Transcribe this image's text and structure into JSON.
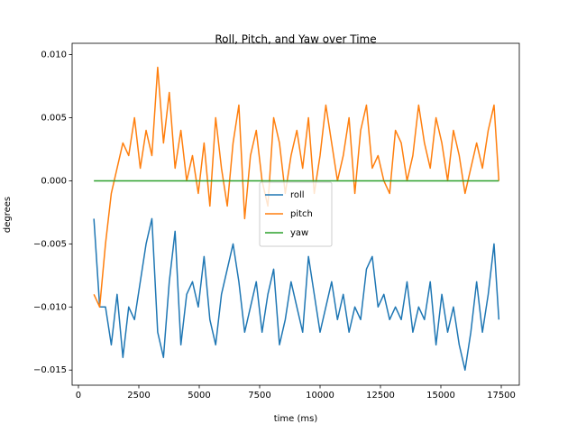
{
  "chart_data": {
    "type": "line",
    "title": "Roll, Pitch, and Yaw over Time",
    "xlabel": "time (ms)",
    "ylabel": "degrees",
    "x": [
      640,
      880,
      1120,
      1360,
      1600,
      1840,
      2080,
      2320,
      2560,
      2800,
      3040,
      3280,
      3520,
      3760,
      4000,
      4240,
      4480,
      4720,
      4960,
      5200,
      5440,
      5680,
      5920,
      6160,
      6400,
      6640,
      6880,
      7120,
      7360,
      7600,
      7840,
      8080,
      8320,
      8560,
      8800,
      9040,
      9280,
      9520,
      9760,
      10000,
      10240,
      10480,
      10720,
      10960,
      11200,
      11440,
      11680,
      11920,
      12160,
      12400,
      12640,
      12880,
      13120,
      13360,
      13600,
      13840,
      14080,
      14320,
      14560,
      14800,
      15040,
      15280,
      15520,
      15760,
      16000,
      16240,
      16480,
      16720,
      16960,
      17200,
      17400
    ],
    "series": [
      {
        "name": "roll",
        "color": "#1f77b4",
        "values": [
          -0.003,
          -0.01,
          -0.01,
          -0.013,
          -0.009,
          -0.014,
          -0.01,
          -0.011,
          -0.008,
          -0.005,
          -0.003,
          -0.012,
          -0.014,
          -0.008,
          -0.004,
          -0.013,
          -0.009,
          -0.008,
          -0.01,
          -0.006,
          -0.011,
          -0.013,
          -0.009,
          -0.007,
          -0.005,
          -0.008,
          -0.012,
          -0.01,
          -0.008,
          -0.012,
          -0.009,
          -0.007,
          -0.013,
          -0.011,
          -0.008,
          -0.01,
          -0.012,
          -0.006,
          -0.009,
          -0.012,
          -0.01,
          -0.008,
          -0.011,
          -0.009,
          -0.012,
          -0.01,
          -0.011,
          -0.007,
          -0.006,
          -0.01,
          -0.009,
          -0.011,
          -0.01,
          -0.011,
          -0.008,
          -0.012,
          -0.01,
          -0.011,
          -0.008,
          -0.013,
          -0.009,
          -0.012,
          -0.01,
          -0.013,
          -0.015,
          -0.012,
          -0.008,
          -0.012,
          -0.009,
          -0.005,
          -0.011
        ]
      },
      {
        "name": "pitch",
        "color": "#ff7f0e",
        "values": [
          -0.009,
          -0.01,
          -0.005,
          -0.001,
          0.001,
          0.003,
          0.002,
          0.005,
          0.001,
          0.004,
          0.002,
          0.009,
          0.003,
          0.007,
          0.001,
          0.004,
          0.0,
          0.002,
          -0.001,
          0.003,
          -0.002,
          0.005,
          0.001,
          -0.002,
          0.003,
          0.006,
          -0.003,
          0.002,
          0.004,
          0.0,
          -0.002,
          0.005,
          0.003,
          -0.001,
          0.002,
          0.004,
          0.001,
          0.005,
          -0.001,
          0.002,
          0.006,
          0.003,
          0.0,
          0.002,
          0.005,
          -0.001,
          0.004,
          0.006,
          0.001,
          0.002,
          0.0,
          -0.001,
          0.004,
          0.003,
          0.0,
          0.002,
          0.006,
          0.003,
          0.001,
          0.005,
          0.003,
          0.0,
          0.004,
          0.002,
          -0.001,
          0.001,
          0.003,
          0.001,
          0.004,
          0.006,
          0.0
        ]
      },
      {
        "name": "yaw",
        "color": "#2ca02c",
        "values": [
          0,
          0,
          0,
          0,
          0,
          0,
          0,
          0,
          0,
          0,
          0,
          0,
          0,
          0,
          0,
          0,
          0,
          0,
          0,
          0,
          0,
          0,
          0,
          0,
          0,
          0,
          0,
          0,
          0,
          0,
          0,
          0,
          0,
          0,
          0,
          0,
          0,
          0,
          0,
          0,
          0,
          0,
          0,
          0,
          0,
          0,
          0,
          0,
          0,
          0,
          0,
          0,
          0,
          0,
          0,
          0,
          0,
          0,
          0,
          0,
          0,
          0,
          0,
          0,
          0,
          0,
          0,
          0,
          0,
          0,
          0
        ]
      }
    ],
    "xlim": [
      -261,
      18246
    ],
    "ylim": [
      -0.0162,
      0.0109
    ],
    "xticks": [
      0,
      2500,
      5000,
      7500,
      10000,
      12500,
      15000,
      17500
    ],
    "yticks": [
      {
        "value": -0.015,
        "label": "−0.015"
      },
      {
        "value": -0.01,
        "label": "−0.010"
      },
      {
        "value": -0.005,
        "label": "−0.005"
      },
      {
        "value": 0,
        "label": "0.000"
      },
      {
        "value": 0.005,
        "label": "0.005"
      },
      {
        "value": 0.01,
        "label": "0.010"
      }
    ],
    "legend": "center",
    "grid": false
  }
}
